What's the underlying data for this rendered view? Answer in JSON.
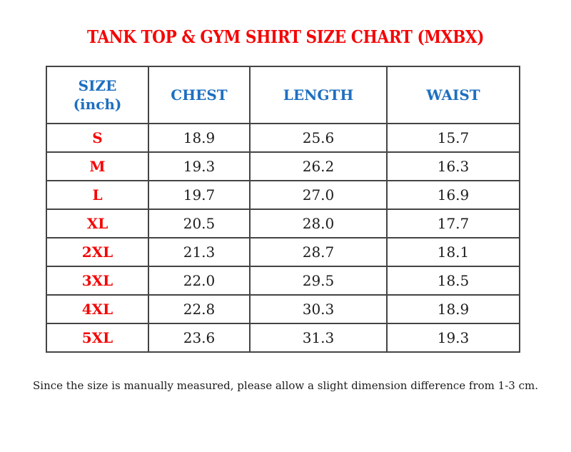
{
  "colors": {
    "accent-red": "#f40606",
    "accent-blue": "#1e6fc0",
    "text-dark": "#1c1c1c",
    "border-gray": "#444444",
    "background": "#ffffff"
  },
  "page": {
    "title": "TANK TOP & GYM SHIRT SIZE CHART (MXBX)",
    "footnote": "Since the size is manually measured, please allow a slight dimension difference from 1-3 cm."
  },
  "table": {
    "headers": [
      "SIZE\n(inch)",
      "CHEST",
      "LENGTH",
      "WAIST"
    ],
    "rows": [
      {
        "size": "S",
        "chest": "18.9",
        "length": "25.6",
        "waist": "15.7"
      },
      {
        "size": "M",
        "chest": "19.3",
        "length": "26.2",
        "waist": "16.3"
      },
      {
        "size": "L",
        "chest": "19.7",
        "length": "27.0",
        "waist": "16.9"
      },
      {
        "size": "XL",
        "chest": "20.5",
        "length": "28.0",
        "waist": "17.7"
      },
      {
        "size": "2XL",
        "chest": "21.3",
        "length": "28.7",
        "waist": "18.1"
      },
      {
        "size": "3XL",
        "chest": "22.0",
        "length": "29.5",
        "waist": "18.5"
      },
      {
        "size": "4XL",
        "chest": "22.8",
        "length": "30.3",
        "waist": "18.9"
      },
      {
        "size": "5XL",
        "chest": "23.6",
        "length": "31.3",
        "waist": "19.3"
      }
    ]
  }
}
